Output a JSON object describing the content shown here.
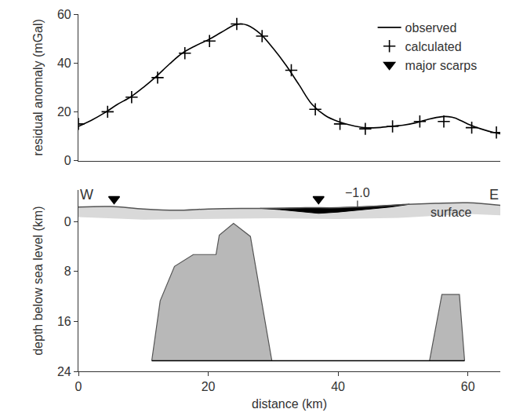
{
  "chart_data": [
    {
      "type": "line",
      "ylabel": "residual anomaly (mGal)",
      "xlim": [
        0,
        65
      ],
      "ylim": [
        0,
        60
      ],
      "yticks": [
        0,
        20,
        40,
        60
      ],
      "tick_labels": "y",
      "legend": "upper right",
      "series": [
        {
          "name": "observed",
          "type": "line",
          "color": "#000000",
          "line_style": "solid",
          "x": [
            0,
            2,
            4,
            6,
            8,
            10,
            12,
            14,
            16,
            18,
            20,
            22,
            24,
            25,
            26,
            28,
            30,
            32,
            34,
            36,
            38,
            40,
            42,
            44,
            46,
            48,
            50,
            52,
            54,
            56,
            57,
            58,
            60,
            62,
            64,
            65
          ],
          "values": [
            14,
            16.5,
            19.5,
            23,
            26,
            30,
            34.5,
            39.5,
            44,
            47,
            49.5,
            52.5,
            55.5,
            56,
            55.5,
            52,
            46,
            39,
            31,
            23,
            18.5,
            16,
            14.5,
            13.5,
            13.5,
            14,
            14.5,
            15.5,
            17,
            18,
            18,
            17.5,
            15,
            13,
            11.5,
            11
          ]
        },
        {
          "name": "calculated",
          "type": "scatter",
          "color": "#000000",
          "marker": "cross",
          "x": [
            0,
            4.5,
            8.2,
            12.2,
            16.4,
            20.2,
            24.4,
            28.3,
            32.8,
            36.5,
            40.3,
            44.2,
            48.4,
            52.6,
            56.3,
            60.6,
            64.4
          ],
          "values": [
            15,
            20,
            26,
            34,
            44,
            49,
            56,
            51,
            37,
            21,
            15,
            13,
            14,
            16,
            16,
            13.5,
            11.5
          ]
        }
      ]
    },
    {
      "type": "cross_section",
      "xlabel": "distance (km)",
      "ylabel": "depth below sea level (km)",
      "xlim": [
        0,
        65
      ],
      "xticks": [
        0,
        20,
        40,
        60
      ],
      "ylim": [
        24,
        -5
      ],
      "yticks": [
        0,
        8,
        16,
        24
      ],
      "end_labels": [
        "W",
        "E"
      ],
      "surface": {
        "color": "#555555",
        "x": [
          0,
          5,
          10,
          15,
          20,
          25,
          30,
          35,
          40,
          45,
          50,
          55,
          60,
          65
        ],
        "values": [
          -2.3,
          -2.4,
          -2.0,
          -1.8,
          -2.0,
          -2.1,
          -2.1,
          -2.2,
          -2.2,
          -2.4,
          -2.7,
          -2.9,
          -3.0,
          -2.6
        ]
      },
      "layer_base": {
        "color": "#d9d9d9",
        "x": [
          0,
          10,
          20,
          30,
          40,
          50,
          60,
          65
        ],
        "values": [
          -0.7,
          -0.3,
          -0.4,
          -0.5,
          -0.4,
          -0.6,
          -1.2,
          -1.0
        ]
      },
      "lens": {
        "color": "#000000",
        "x": [
          28,
          32,
          36,
          40,
          44,
          48,
          51,
          48,
          44,
          40,
          37,
          34,
          31,
          28
        ],
        "values": [
          -2.1,
          -2.15,
          -2.2,
          -2.2,
          -2.35,
          -2.6,
          -2.75,
          -2.3,
          -1.9,
          -1.5,
          -1.3,
          -1.6,
          -1.9,
          -2.1
        ]
      },
      "bodies": [
        {
          "color": "#b8b8b8",
          "x": [
            11.3,
            12.6,
            14.8,
            17.7,
            21.2,
            21.7,
            23.9,
            26.5,
            29.8
          ],
          "values": [
            22.3,
            12.7,
            7.2,
            5.3,
            5.3,
            2.2,
            0.3,
            2.4,
            22.3
          ]
        },
        {
          "color": "#b8b8b8",
          "x": [
            54.1,
            56,
            58.7,
            59.5
          ],
          "values": [
            22.3,
            11.7,
            11.7,
            22.3
          ]
        }
      ],
      "model_base": {
        "color": "#000000",
        "x": [
          11.3,
          59.5
        ],
        "values": [
          22.3,
          22.3
        ]
      },
      "scarps": {
        "name": "major scarps",
        "type": "scatter",
        "marker": "triangle-down",
        "color": "#000000",
        "x": [
          5.5,
          37
        ],
        "values": [
          -3.6,
          -3.6
        ]
      },
      "annotations": [
        {
          "text": "−1.0",
          "x": 43,
          "y": -2.35
        },
        {
          "text": "surface",
          "x": 57.5,
          "y": -1.5
        }
      ]
    }
  ]
}
